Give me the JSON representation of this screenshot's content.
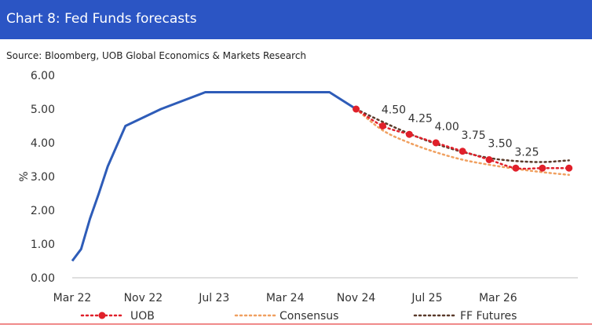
{
  "header": {
    "title": "Chart 8: Fed Funds forecasts"
  },
  "source": "Source: Bloomberg, UOB Global Economics & Markets Research",
  "chart_data": {
    "type": "line",
    "ylabel": "%",
    "ylim": [
      0,
      6
    ],
    "yticks": [
      "0.00",
      "1.00",
      "2.00",
      "3.00",
      "4.00",
      "5.00",
      "6.00"
    ],
    "xticks": [
      "Mar 22",
      "Nov 22",
      "Jul 23",
      "Mar 24",
      "Nov 24",
      "Jul 25",
      "Mar 26"
    ],
    "xtick_positions": [
      0,
      8,
      16,
      24,
      32,
      40,
      48
    ],
    "xlim": [
      0,
      57
    ],
    "colors": {
      "history": "#2e5cb8",
      "uob": "#e0202a",
      "consensus": "#f0a060",
      "ff_futures": "#5a3a2a"
    },
    "history": {
      "x": [
        0,
        1,
        2,
        3,
        4,
        6,
        10,
        15,
        20,
        24,
        29,
        32
      ],
      "values": [
        0.5,
        0.85,
        1.75,
        2.5,
        3.3,
        4.5,
        5.0,
        5.5,
        5.5,
        5.5,
        5.5,
        5.0
      ]
    },
    "series": [
      {
        "name": "UOB",
        "x": [
          32,
          35,
          38,
          41,
          44,
          47,
          50,
          53,
          56
        ],
        "values": [
          5.0,
          4.5,
          4.25,
          4.0,
          3.75,
          3.5,
          3.25,
          3.25,
          3.25
        ],
        "labels": [
          "",
          "4.50",
          "4.25",
          "4.00",
          "3.75",
          "3.50",
          "3.25",
          "",
          ""
        ]
      },
      {
        "name": "Consensus",
        "x": [
          32,
          35,
          38,
          41,
          44,
          47,
          50,
          53,
          56
        ],
        "values": [
          5.0,
          4.37,
          4.0,
          3.72,
          3.5,
          3.35,
          3.23,
          3.13,
          3.05
        ]
      },
      {
        "name": "FF Futures",
        "x": [
          32,
          35,
          38,
          41,
          44,
          47,
          50,
          53,
          56
        ],
        "values": [
          5.0,
          4.62,
          4.27,
          3.97,
          3.73,
          3.55,
          3.46,
          3.43,
          3.48
        ]
      }
    ]
  },
  "legend": {
    "uob": "UOB",
    "consensus": "Consensus",
    "ff_futures": "FF Futures"
  }
}
